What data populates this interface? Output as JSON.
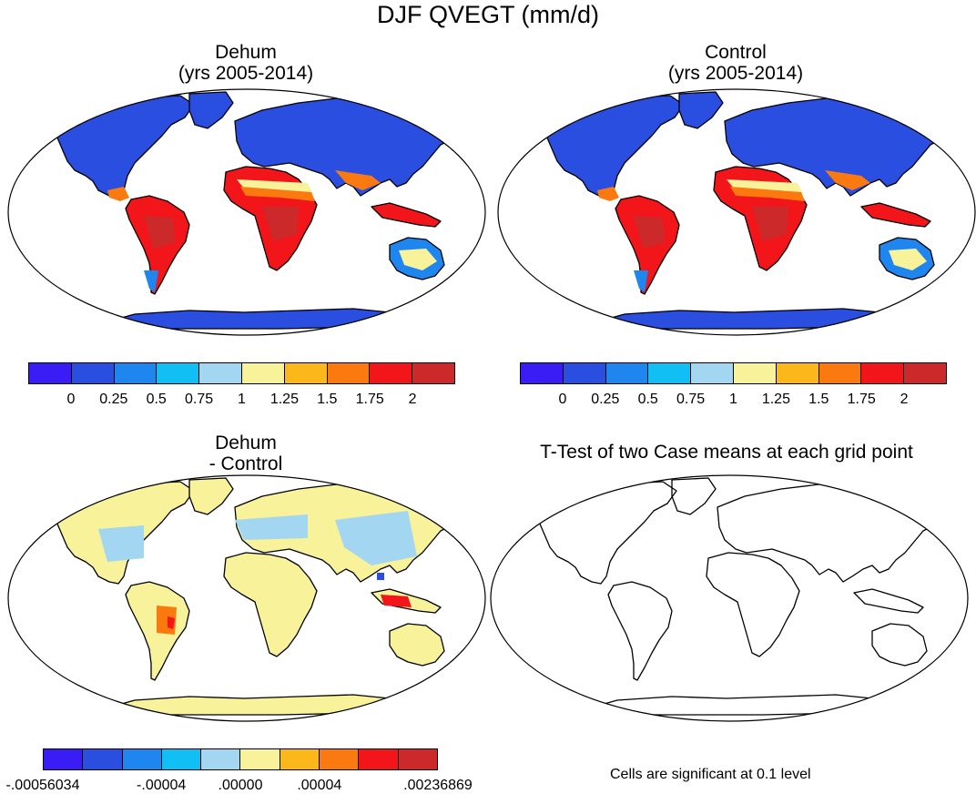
{
  "figure": {
    "title": "DJF QVEGT (mm/d)"
  },
  "panels": [
    {
      "id": "dehum",
      "title_line1": "Dehum",
      "title_line2": "(yrs 2005-2014)",
      "fill": "absolute"
    },
    {
      "id": "control",
      "title_line1": "Control",
      "title_line2": "(yrs 2005-2014)",
      "fill": "absolute"
    },
    {
      "id": "difference",
      "title_line1": "Dehum",
      "title_line2": "- Control",
      "fill": "difference"
    },
    {
      "id": "ttest",
      "title_line1": "T-Test of two Case means at each grid point",
      "title_line2": "",
      "fill": "none",
      "note": "Cells are significant at 0.1 level"
    }
  ],
  "colorbar_absolute": {
    "colors": [
      "#3a1cf5",
      "#2a4ee0",
      "#1f86f0",
      "#12bff5",
      "#a3d6f0",
      "#f8f29a",
      "#fcb81a",
      "#fb7a10",
      "#f2151a",
      "#cc2a2a"
    ],
    "labels": [
      "0",
      "0.25",
      "0.5",
      "0.75",
      "1",
      "1.25",
      "1.5",
      "1.75",
      "2"
    ]
  },
  "colorbar_difference": {
    "colors": [
      "#3a1cf5",
      "#2a4ee0",
      "#1f86f0",
      "#12bff5",
      "#a3d6f0",
      "#f8f29a",
      "#fcb81a",
      "#fb7a10",
      "#f2151a",
      "#cc2a2a"
    ],
    "labels": [
      "-.00056034",
      "-.00004",
      ".00000",
      ".00004",
      ".00236869"
    ]
  },
  "map_colors": {
    "land_low": "#2a4ee0",
    "land_mid": "#1f86f0",
    "land_high": "#f2151a",
    "land_top": "#cc2a2a",
    "land_warm": "#fb7a10",
    "land_yellow": "#f8f29a",
    "land_lightblue": "#a3d6f0",
    "coast": "#000000",
    "ocean": "#ffffff"
  }
}
